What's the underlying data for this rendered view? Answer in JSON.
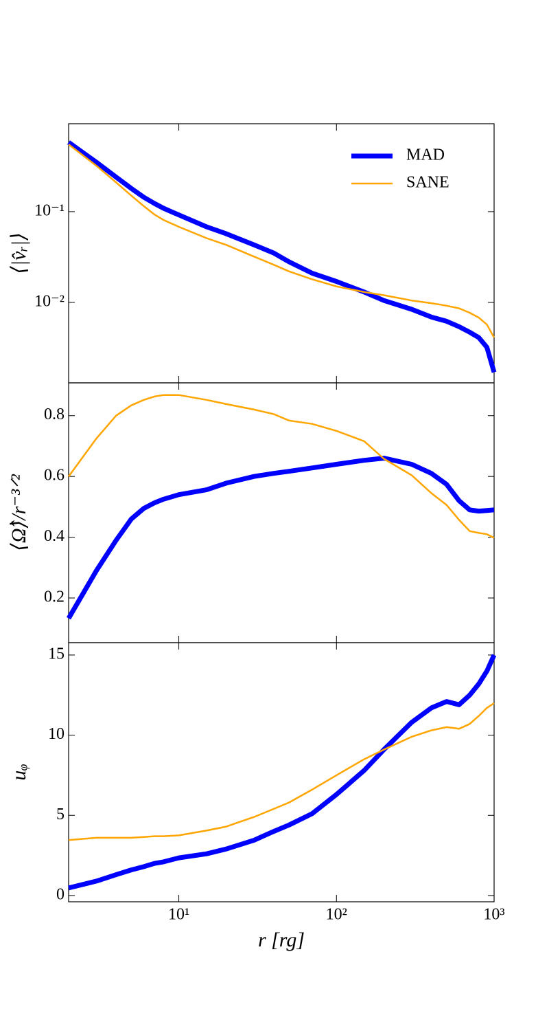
{
  "chart_data": [
    {
      "type": "line",
      "ylabel": "⟨|v̂ᵣ|⟩",
      "yscale": "log",
      "xscale": "log",
      "legend": "upper right",
      "xlim": [
        2,
        1000
      ],
      "ylim": [
        0.0013,
        0.93
      ],
      "yticks": [
        {
          "value": 0.1,
          "label": "10⁻¹"
        },
        {
          "value": 0.01,
          "label": "10⁻²"
        }
      ],
      "x": [
        2,
        3,
        4,
        5,
        6,
        7,
        8,
        10,
        15,
        20,
        30,
        40,
        50,
        70,
        100,
        150,
        200,
        300,
        400,
        500,
        600,
        700,
        800,
        900,
        1000
      ],
      "series": [
        {
          "name": "MAD",
          "color": "#0000ff",
          "values": [
            0.58,
            0.35,
            0.24,
            0.18,
            0.144,
            0.123,
            0.109,
            0.092,
            0.068,
            0.057,
            0.043,
            0.035,
            0.028,
            0.021,
            0.017,
            0.013,
            0.0105,
            0.0084,
            0.0069,
            0.0062,
            0.0054,
            0.0047,
            0.0041,
            0.0032,
            0.0017
          ]
        },
        {
          "name": "SANE",
          "color": "#ffa500",
          "values": [
            0.55,
            0.32,
            0.21,
            0.15,
            0.115,
            0.093,
            0.081,
            0.068,
            0.051,
            0.043,
            0.032,
            0.026,
            0.022,
            0.018,
            0.015,
            0.013,
            0.012,
            0.0105,
            0.0098,
            0.0092,
            0.0086,
            0.0077,
            0.0068,
            0.0057,
            0.0041
          ]
        }
      ]
    },
    {
      "type": "line",
      "ylabel": "⟨Ω̂⟩/r⁻³ᐟ²",
      "xscale": "log",
      "xlim": [
        2,
        1000
      ],
      "ylim": [
        0.053,
        0.908
      ],
      "yticks": [
        0.2,
        0.4,
        0.6,
        0.8
      ],
      "x": [
        2,
        3,
        4,
        5,
        6,
        7,
        8,
        10,
        15,
        20,
        30,
        40,
        50,
        70,
        100,
        150,
        200,
        300,
        400,
        500,
        600,
        700,
        800,
        900,
        1000
      ],
      "series": [
        {
          "name": "MAD",
          "color": "#0000ff",
          "values": [
            0.133,
            0.29,
            0.39,
            0.46,
            0.495,
            0.513,
            0.525,
            0.54,
            0.556,
            0.578,
            0.6,
            0.61,
            0.617,
            0.628,
            0.64,
            0.653,
            0.66,
            0.64,
            0.61,
            0.574,
            0.52,
            0.49,
            0.486,
            0.488,
            0.49
          ]
        },
        {
          "name": "SANE",
          "color": "#ffa500",
          "values": [
            0.6,
            0.725,
            0.8,
            0.834,
            0.852,
            0.863,
            0.868,
            0.868,
            0.852,
            0.838,
            0.82,
            0.805,
            0.784,
            0.773,
            0.75,
            0.716,
            0.658,
            0.604,
            0.545,
            0.506,
            0.457,
            0.42,
            0.414,
            0.41,
            0.398
          ]
        }
      ]
    },
    {
      "type": "line",
      "ylabel": "uᵩ",
      "xlabel": "r [rg]",
      "xscale": "log",
      "xlim": [
        2,
        1000
      ],
      "ylim": [
        -0.39,
        15.77
      ],
      "yticks": [
        0,
        5,
        10,
        15
      ],
      "xticks": [
        {
          "value": 10,
          "label": "10¹"
        },
        {
          "value": 100,
          "label": "10²"
        },
        {
          "value": 1000,
          "label": "10³"
        }
      ],
      "x": [
        2,
        3,
        4,
        5,
        6,
        7,
        8,
        10,
        15,
        20,
        30,
        40,
        50,
        70,
        100,
        150,
        200,
        300,
        400,
        500,
        600,
        700,
        800,
        900,
        1000
      ],
      "series": [
        {
          "name": "MAD",
          "color": "#0000ff",
          "values": [
            0.47,
            0.9,
            1.3,
            1.6,
            1.8,
            2.0,
            2.1,
            2.35,
            2.6,
            2.9,
            3.45,
            4.0,
            4.4,
            5.1,
            6.3,
            7.8,
            9.1,
            10.8,
            11.7,
            12.1,
            11.9,
            12.5,
            13.2,
            14.0,
            15.0
          ]
        },
        {
          "name": "SANE",
          "color": "#ffa500",
          "values": [
            3.46,
            3.6,
            3.6,
            3.6,
            3.65,
            3.7,
            3.7,
            3.75,
            4.05,
            4.3,
            4.9,
            5.4,
            5.8,
            6.6,
            7.5,
            8.5,
            9.1,
            9.9,
            10.3,
            10.5,
            10.4,
            10.7,
            11.2,
            11.7,
            12.0
          ]
        }
      ]
    }
  ]
}
